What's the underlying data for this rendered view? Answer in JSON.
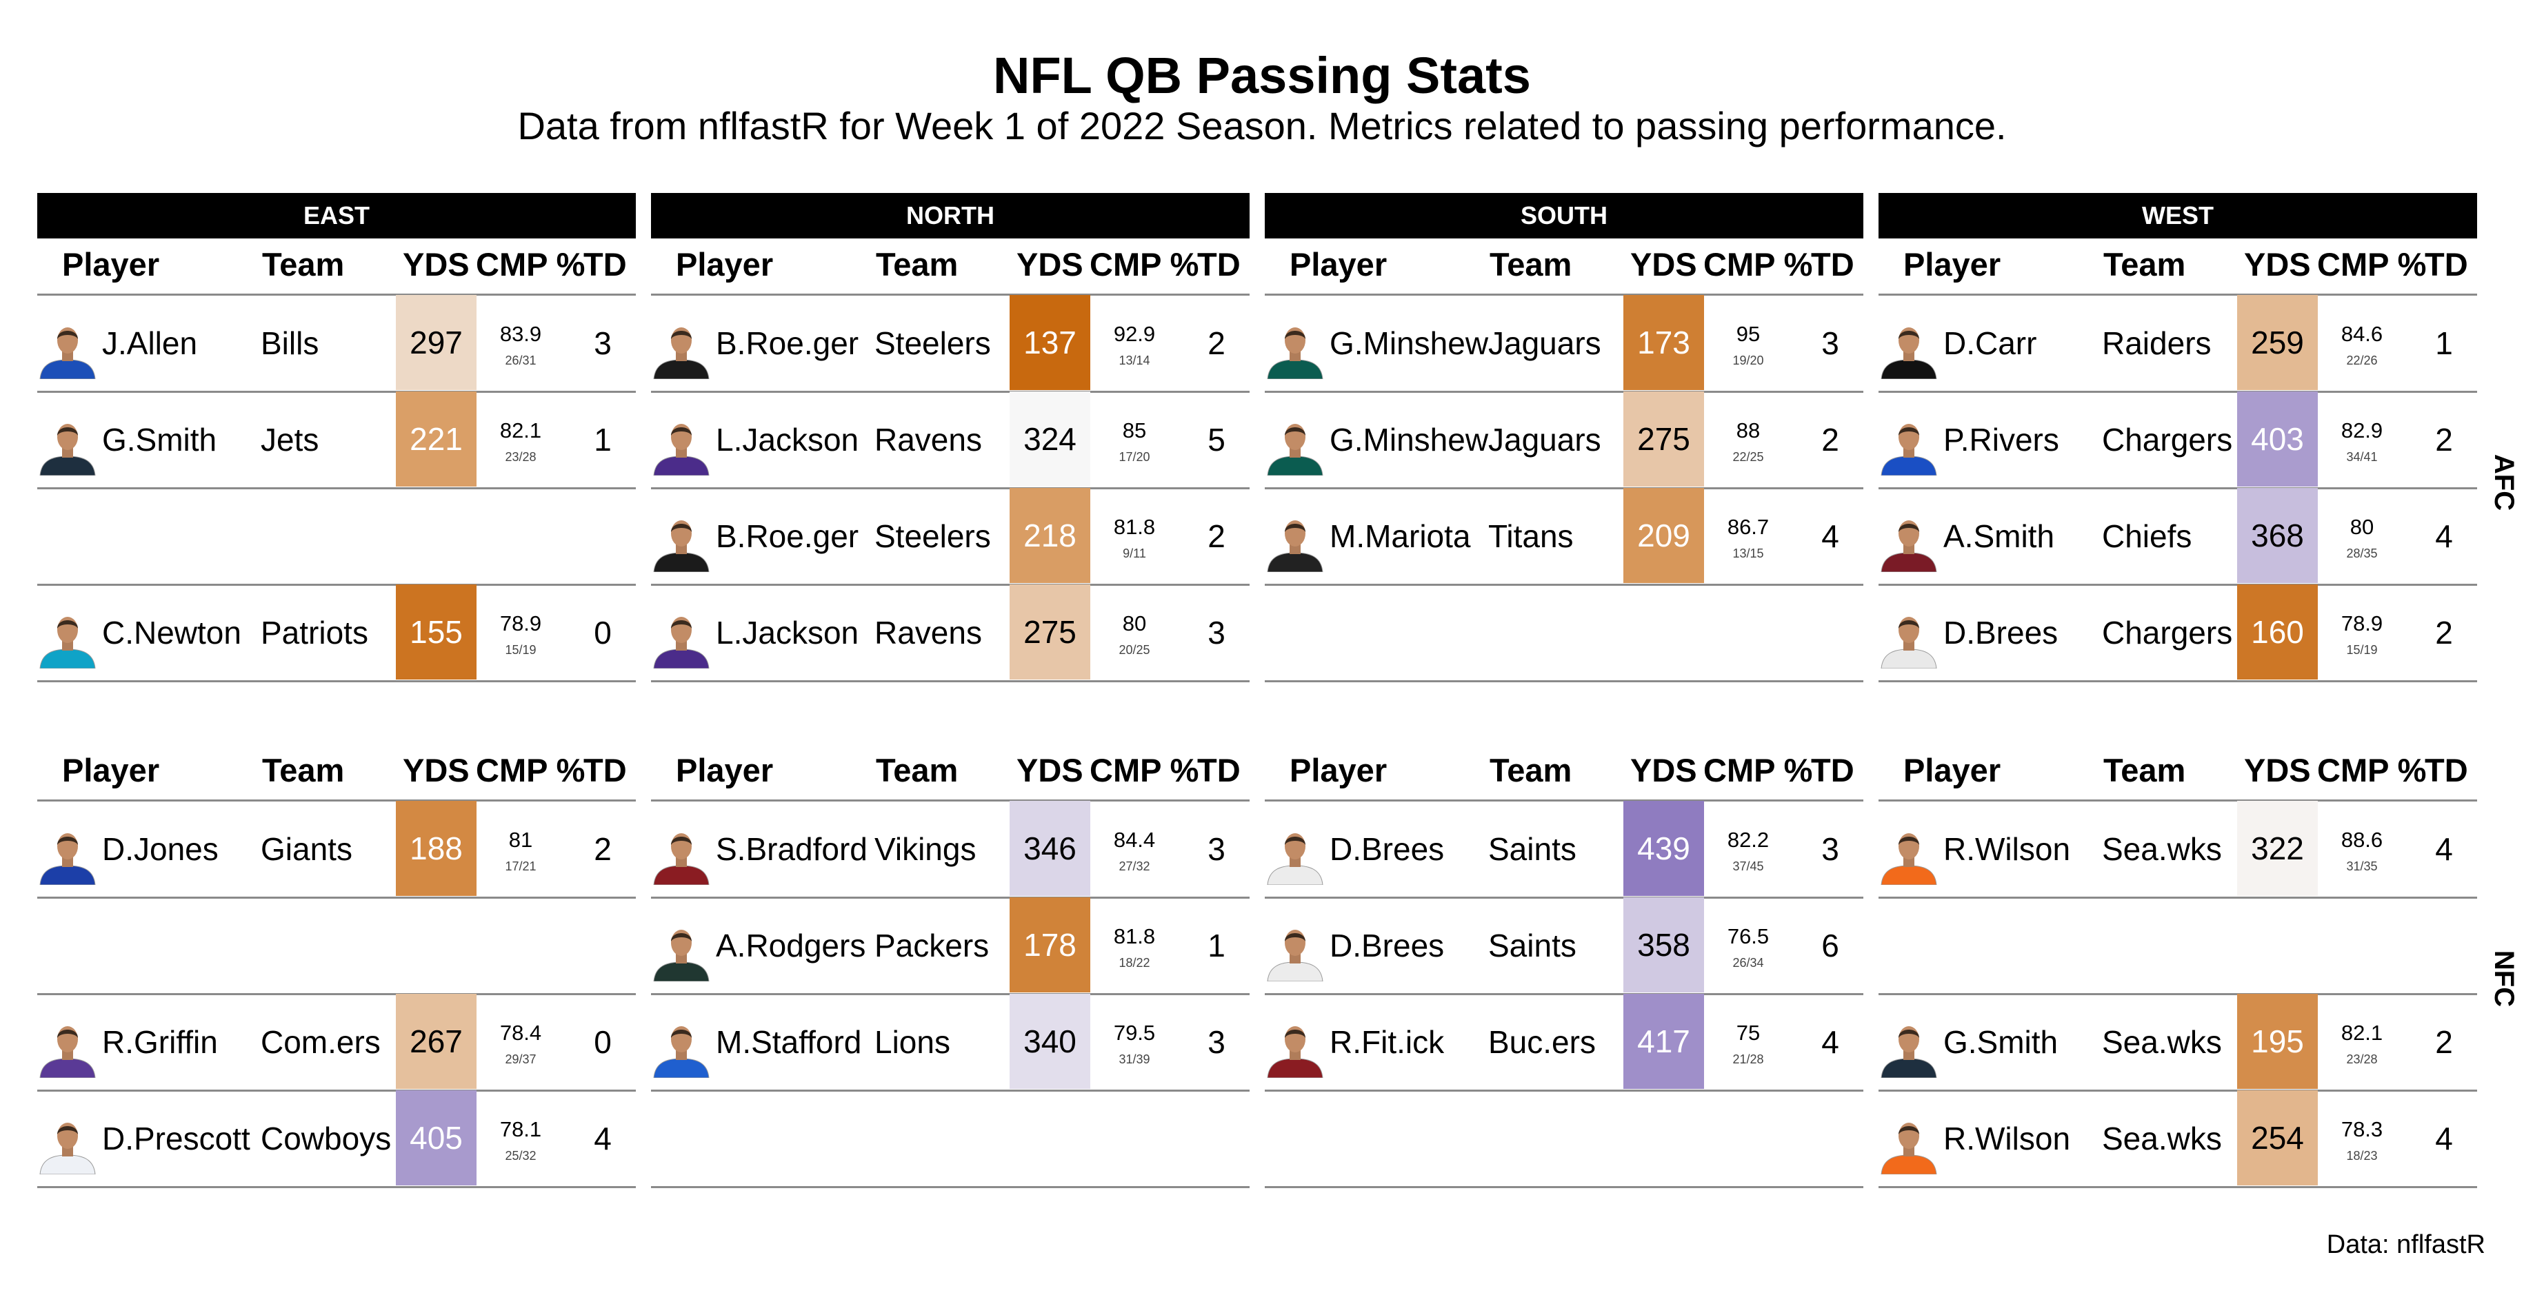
{
  "title": "NFL QB Passing Stats",
  "subtitle": "Data from nflfastR for Week 1 of 2022 Season. Metrics related to passing performance.",
  "caption": "Data: nflfastR",
  "columns": {
    "player": "Player",
    "team": "Team",
    "yds": "YDS",
    "cmp": "CMP %",
    "td": "TD"
  },
  "divisions": [
    "EAST",
    "NORTH",
    "SOUTH",
    "WEST"
  ],
  "conferences": [
    "AFC",
    "NFC"
  ],
  "chart_data": {
    "type": "table",
    "color_scale": {
      "low": "#c8690f",
      "mid": "#f7f7f7",
      "high": "#8f7cc0",
      "domain": [
        137,
        324,
        439
      ]
    },
    "panels": [
      {
        "conference": "AFC",
        "division": "EAST",
        "rows": [
          {
            "player": "J.Allen",
            "team": "Bills",
            "yds": 297,
            "cmp": "83.9",
            "frac": "26/31",
            "td": 3,
            "jersey": "#1c4fb8"
          },
          {
            "player": "G.Smith",
            "team": "Jets",
            "yds": 221,
            "cmp": "82.1",
            "frac": "23/28",
            "td": 1,
            "jersey": "#1e2f3f"
          },
          null,
          {
            "player": "C.Newton",
            "team": "Patriots",
            "yds": 155,
            "cmp": "78.9",
            "frac": "15/19",
            "td": 0,
            "jersey": "#0fa3c7"
          }
        ]
      },
      {
        "conference": "AFC",
        "division": "NORTH",
        "rows": [
          {
            "player": "B.Roe.ger",
            "team": "Steelers",
            "yds": 137,
            "cmp": "92.9",
            "frac": "13/14",
            "td": 2,
            "jersey": "#1b1b1b"
          },
          {
            "player": "L.Jackson",
            "team": "Ravens",
            "yds": 324,
            "cmp": "85",
            "frac": "17/20",
            "td": 5,
            "jersey": "#4b2c8a"
          },
          {
            "player": "B.Roe.ger",
            "team": "Steelers",
            "yds": 218,
            "cmp": "81.8",
            "frac": "9/11",
            "td": 2,
            "jersey": "#1b1b1b"
          },
          {
            "player": "L.Jackson",
            "team": "Ravens",
            "yds": 275,
            "cmp": "80",
            "frac": "20/25",
            "td": 3,
            "jersey": "#4b2c8a"
          }
        ]
      },
      {
        "conference": "AFC",
        "division": "SOUTH",
        "rows": [
          {
            "player": "G.Minshew",
            "team": "Jaguars",
            "yds": 173,
            "cmp": "95",
            "frac": "19/20",
            "td": 3,
            "jersey": "#0b5c50"
          },
          {
            "player": "G.Minshew",
            "team": "Jaguars",
            "yds": 275,
            "cmp": "88",
            "frac": "22/25",
            "td": 2,
            "jersey": "#0b5c50"
          },
          {
            "player": "M.Mariota",
            "team": "Titans",
            "yds": 209,
            "cmp": "86.7",
            "frac": "13/15",
            "td": 4,
            "jersey": "#222222"
          },
          null
        ]
      },
      {
        "conference": "AFC",
        "division": "WEST",
        "rows": [
          {
            "player": "D.Carr",
            "team": "Raiders",
            "yds": 259,
            "cmp": "84.6",
            "frac": "22/26",
            "td": 1,
            "jersey": "#111111"
          },
          {
            "player": "P.Rivers",
            "team": "Chargers",
            "yds": 403,
            "cmp": "82.9",
            "frac": "34/41",
            "td": 2,
            "jersey": "#1a4fc4"
          },
          {
            "player": "A.Smith",
            "team": "Chiefs",
            "yds": 368,
            "cmp": "80",
            "frac": "28/35",
            "td": 4,
            "jersey": "#7a1b26"
          },
          {
            "player": "D.Brees",
            "team": "Chargers",
            "yds": 160,
            "cmp": "78.9",
            "frac": "15/19",
            "td": 2,
            "jersey": "#e9e9e9"
          }
        ]
      },
      {
        "conference": "NFC",
        "division": "EAST",
        "rows": [
          {
            "player": "D.Jones",
            "team": "Giants",
            "yds": 188,
            "cmp": "81",
            "frac": "17/21",
            "td": 2,
            "jersey": "#1c3fa8"
          },
          null,
          {
            "player": "R.Griffin",
            "team": "Com.ers",
            "yds": 267,
            "cmp": "78.4",
            "frac": "29/37",
            "td": 0,
            "jersey": "#5a3a96"
          },
          {
            "player": "D.Prescott",
            "team": "Cowboys",
            "yds": 405,
            "cmp": "78.1",
            "frac": "25/32",
            "td": 4,
            "jersey": "#eef1f6"
          }
        ]
      },
      {
        "conference": "NFC",
        "division": "NORTH",
        "rows": [
          {
            "player": "S.Bradford",
            "team": "Vikings",
            "yds": 346,
            "cmp": "84.4",
            "frac": "27/32",
            "td": 3,
            "jersey": "#8a1c22"
          },
          {
            "player": "A.Rodgers",
            "team": "Packers",
            "yds": 178,
            "cmp": "81.8",
            "frac": "18/22",
            "td": 1,
            "jersey": "#203731"
          },
          {
            "player": "M.Stafford",
            "team": "Lions",
            "yds": 340,
            "cmp": "79.5",
            "frac": "31/39",
            "td": 3,
            "jersey": "#1f5fcf"
          },
          null
        ]
      },
      {
        "conference": "NFC",
        "division": "SOUTH",
        "rows": [
          {
            "player": "D.Brees",
            "team": "Saints",
            "yds": 439,
            "cmp": "82.2",
            "frac": "37/45",
            "td": 3,
            "jersey": "#ececec"
          },
          {
            "player": "D.Brees",
            "team": "Saints",
            "yds": 358,
            "cmp": "76.5",
            "frac": "26/34",
            "td": 6,
            "jersey": "#ececec"
          },
          {
            "player": "R.Fit.ick",
            "team": "Buc.ers",
            "yds": 417,
            "cmp": "75",
            "frac": "21/28",
            "td": 4,
            "jersey": "#8a1c22"
          },
          null
        ]
      },
      {
        "conference": "NFC",
        "division": "WEST",
        "rows": [
          {
            "player": "R.Wilson",
            "team": "Sea.wks",
            "yds": 322,
            "cmp": "88.6",
            "frac": "31/35",
            "td": 4,
            "jersey": "#f26a1b"
          },
          null,
          {
            "player": "G.Smith",
            "team": "Sea.wks",
            "yds": 195,
            "cmp": "82.1",
            "frac": "23/28",
            "td": 2,
            "jersey": "#1e2f3f"
          },
          {
            "player": "R.Wilson",
            "team": "Sea.wks",
            "yds": 254,
            "cmp": "78.3",
            "frac": "18/23",
            "td": 4,
            "jersey": "#f26a1b"
          }
        ]
      }
    ]
  }
}
